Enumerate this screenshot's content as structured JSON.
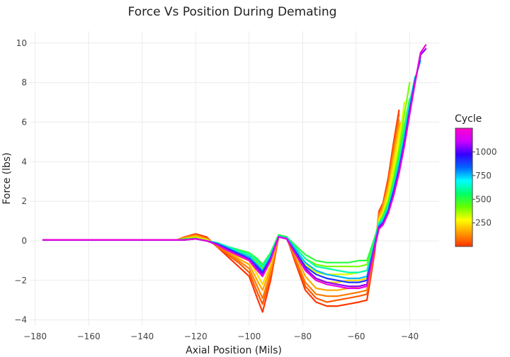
{
  "chart_data": {
    "type": "line",
    "title": "Force Vs Position During Demating",
    "xlabel": "Axial Position (Mils)",
    "ylabel": "Force (lbs)",
    "xlim": [
      -182,
      -29
    ],
    "ylim": [
      -4.3,
      10.6
    ],
    "x_ticks": [
      -180,
      -160,
      -140,
      -120,
      -100,
      -80,
      -60,
      -40
    ],
    "x_tick_labels": [
      "−180",
      "−160",
      "−140",
      "−120",
      "−100",
      "−80",
      "−60",
      "−40"
    ],
    "y_ticks": [
      -4,
      -2,
      0,
      2,
      4,
      6,
      8,
      10
    ],
    "y_tick_labels": [
      "−4",
      "−2",
      "0",
      "2",
      "4",
      "6",
      "8",
      "10"
    ],
    "grid": true,
    "colorbar": {
      "title": "Cycle",
      "range": [
        1,
        1250
      ],
      "tick_values": [
        250,
        500,
        750,
        1000
      ],
      "tick_labels": [
        "250",
        "500",
        "750",
        "1000"
      ],
      "colorscale": [
        "#ff3300",
        "#ff9900",
        "#ffff00",
        "#66ff00",
        "#00ff66",
        "#00ffff",
        "#0066ff",
        "#3300ff",
        "#cc00ff",
        "#ff00cc"
      ]
    },
    "x": [
      -177,
      -160,
      -140,
      -127,
      -124,
      -120,
      -116,
      -112,
      -108,
      -104,
      -100,
      -97,
      -95,
      -92,
      -89,
      -86,
      -83,
      -79,
      -75,
      -71,
      -67,
      -63,
      -59,
      -56,
      -55,
      -53,
      -51.5,
      -50,
      -48,
      -46,
      -44,
      -42,
      -40,
      -38,
      -36,
      -34
    ],
    "series": [
      {
        "cycle": 5,
        "y": [
          0.05,
          0.05,
          0.05,
          0.05,
          0.2,
          0.35,
          0.2,
          -0.3,
          -0.8,
          -1.3,
          -1.8,
          -2.9,
          -3.6,
          -2.0,
          0.2,
          0.2,
          -1.0,
          -2.5,
          -3.1,
          -3.3,
          -3.3,
          -3.2,
          -3.1,
          -3.0,
          -2.2,
          -0.5,
          1.5,
          1.9,
          3.2,
          5.0,
          6.6,
          null,
          null,
          null,
          null,
          null
        ]
      },
      {
        "cycle": 50,
        "y": [
          0.05,
          0.05,
          0.05,
          0.05,
          0.2,
          0.3,
          0.15,
          -0.3,
          -0.7,
          -1.1,
          -1.6,
          -2.6,
          -3.2,
          -1.8,
          0.2,
          0.15,
          -0.9,
          -2.3,
          -2.9,
          -3.1,
          -3.0,
          -2.9,
          -2.8,
          -2.7,
          -2.0,
          -0.4,
          1.4,
          1.8,
          3.0,
          4.8,
          6.4,
          null,
          null,
          null,
          null,
          null
        ]
      },
      {
        "cycle": 100,
        "y": [
          0.05,
          0.05,
          0.05,
          0.05,
          0.15,
          0.3,
          0.1,
          -0.25,
          -0.6,
          -1.0,
          -1.4,
          -2.3,
          -2.9,
          -1.6,
          0.25,
          0.1,
          -0.8,
          -2.1,
          -2.7,
          -2.8,
          -2.8,
          -2.7,
          -2.6,
          -2.5,
          -1.8,
          -0.3,
          1.3,
          1.8,
          2.9,
          4.6,
          6.1,
          null,
          null,
          null,
          null,
          null
        ]
      },
      {
        "cycle": 160,
        "y": [
          0.05,
          0.05,
          0.05,
          0.05,
          0.15,
          0.25,
          0.1,
          -0.2,
          -0.5,
          -0.9,
          -1.2,
          -2.0,
          -2.5,
          -1.4,
          0.25,
          0.1,
          -0.6,
          -1.8,
          -2.4,
          -2.5,
          -2.5,
          -2.4,
          -2.3,
          -2.2,
          -1.6,
          -0.2,
          1.2,
          1.7,
          2.7,
          4.3,
          5.8,
          6.3,
          null,
          null,
          null,
          null
        ]
      },
      {
        "cycle": 230,
        "y": [
          0.05,
          0.05,
          0.05,
          0.05,
          0.1,
          0.2,
          0.05,
          -0.2,
          -0.45,
          -0.8,
          -1.0,
          -1.7,
          -2.2,
          -1.2,
          0.3,
          0.1,
          -0.5,
          -1.5,
          -2.0,
          -2.1,
          -2.1,
          -2.0,
          -2.0,
          -1.9,
          -1.4,
          -0.1,
          1.1,
          1.5,
          2.5,
          4.0,
          5.5,
          6.6,
          null,
          null,
          null,
          null
        ]
      },
      {
        "cycle": 310,
        "y": [
          0.05,
          0.05,
          0.05,
          0.05,
          0.1,
          0.15,
          0.05,
          -0.15,
          -0.4,
          -0.7,
          -0.9,
          -1.4,
          -1.8,
          -1.0,
          0.3,
          0.15,
          -0.4,
          -1.2,
          -1.6,
          -1.7,
          -1.7,
          -1.7,
          -1.6,
          -1.5,
          -1.1,
          0.0,
          1.0,
          1.4,
          2.2,
          3.6,
          5.0,
          7.0,
          null,
          null,
          null,
          null
        ]
      },
      {
        "cycle": 400,
        "y": [
          0.05,
          0.05,
          0.05,
          0.05,
          0.1,
          0.15,
          0.0,
          -0.15,
          -0.35,
          -0.55,
          -0.7,
          -1.1,
          -1.4,
          -0.8,
          0.3,
          0.2,
          -0.3,
          -0.9,
          -1.2,
          -1.3,
          -1.3,
          -1.3,
          -1.3,
          -1.2,
          -0.8,
          0.1,
          0.9,
          1.3,
          2.0,
          3.2,
          4.6,
          6.4,
          8.0,
          null,
          null,
          null
        ]
      },
      {
        "cycle": 500,
        "y": [
          0.05,
          0.05,
          0.05,
          0.05,
          0.1,
          0.1,
          0.0,
          -0.1,
          -0.3,
          -0.45,
          -0.6,
          -0.9,
          -1.2,
          -0.6,
          0.3,
          0.2,
          -0.2,
          -0.7,
          -1.0,
          -1.1,
          -1.1,
          -1.1,
          -1.0,
          -1.0,
          -0.6,
          0.2,
          0.9,
          1.2,
          1.9,
          3.0,
          4.3,
          5.8,
          7.2,
          null,
          null,
          null
        ]
      },
      {
        "cycle": 620,
        "y": [
          0.05,
          0.05,
          0.05,
          0.05,
          0.05,
          0.1,
          0.0,
          -0.1,
          -0.3,
          -0.5,
          -0.7,
          -1.0,
          -1.3,
          -0.7,
          0.25,
          0.15,
          -0.3,
          -0.9,
          -1.3,
          -1.4,
          -1.5,
          -1.6,
          -1.6,
          -1.5,
          -1.0,
          0.0,
          0.9,
          1.1,
          1.7,
          2.8,
          4.0,
          5.4,
          7.0,
          8.3,
          null,
          null
        ]
      },
      {
        "cycle": 760,
        "y": [
          0.05,
          0.05,
          0.05,
          0.05,
          0.05,
          0.1,
          0.0,
          -0.15,
          -0.35,
          -0.6,
          -0.8,
          -1.2,
          -1.5,
          -0.8,
          0.2,
          0.15,
          -0.4,
          -1.1,
          -1.5,
          -1.7,
          -1.8,
          -1.9,
          -1.9,
          -1.8,
          -1.2,
          -0.1,
          0.8,
          1.0,
          1.6,
          2.6,
          3.8,
          5.2,
          6.8,
          8.2,
          9.1,
          null
        ]
      },
      {
        "cycle": 900,
        "y": [
          0.05,
          0.05,
          0.05,
          0.05,
          0.05,
          0.1,
          0.0,
          -0.15,
          -0.4,
          -0.65,
          -0.9,
          -1.3,
          -1.6,
          -0.9,
          0.2,
          0.1,
          -0.5,
          -1.3,
          -1.7,
          -1.9,
          -2.0,
          -2.1,
          -2.1,
          -2.0,
          -1.4,
          -0.2,
          0.7,
          0.9,
          1.5,
          2.5,
          3.6,
          5.0,
          6.6,
          8.1,
          9.3,
          null
        ]
      },
      {
        "cycle": 1050,
        "y": [
          0.05,
          0.05,
          0.05,
          0.05,
          0.05,
          0.1,
          0.0,
          -0.2,
          -0.45,
          -0.7,
          -0.95,
          -1.4,
          -1.7,
          -0.9,
          0.2,
          0.1,
          -0.6,
          -1.4,
          -1.9,
          -2.1,
          -2.2,
          -2.3,
          -2.3,
          -2.2,
          -1.5,
          -0.2,
          0.7,
          0.9,
          1.4,
          2.4,
          3.5,
          4.9,
          6.5,
          8.0,
          9.4,
          9.7
        ]
      },
      {
        "cycle": 1200,
        "y": [
          0.05,
          0.05,
          0.05,
          0.05,
          0.05,
          0.1,
          0.0,
          -0.2,
          -0.5,
          -0.75,
          -1.0,
          -1.5,
          -1.8,
          -1.0,
          0.2,
          0.1,
          -0.6,
          -1.5,
          -2.0,
          -2.2,
          -2.3,
          -2.4,
          -2.4,
          -2.3,
          -1.6,
          -0.3,
          0.6,
          0.8,
          1.4,
          2.3,
          3.4,
          4.8,
          6.4,
          8.0,
          9.5,
          9.9
        ]
      }
    ]
  }
}
